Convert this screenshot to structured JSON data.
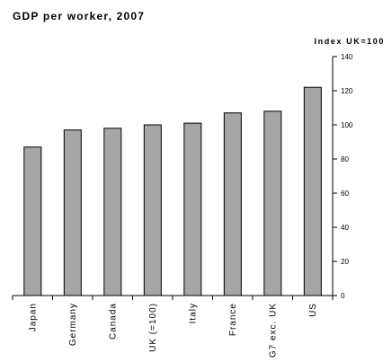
{
  "chart_data": {
    "type": "bar",
    "title": "GDP per worker, 2007",
    "ylabel": "Index UK=100",
    "xlabel": "",
    "categories": [
      "Japan",
      "Germany",
      "Canada",
      "UK  (=100)",
      "Italy",
      "France",
      "G7 exc. UK",
      "US"
    ],
    "values": [
      87,
      97,
      98,
      100,
      101,
      107,
      108,
      122
    ],
    "ylim": [
      0,
      140
    ],
    "yticks": [
      0,
      20,
      40,
      60,
      80,
      100,
      120,
      140
    ],
    "y_axis_position": "right",
    "grid": false,
    "legend": "none",
    "colors": {
      "bar_fill": "#a6a6a6",
      "bar_stroke": "#000000",
      "axis": "#000000",
      "text": "#000000"
    }
  }
}
